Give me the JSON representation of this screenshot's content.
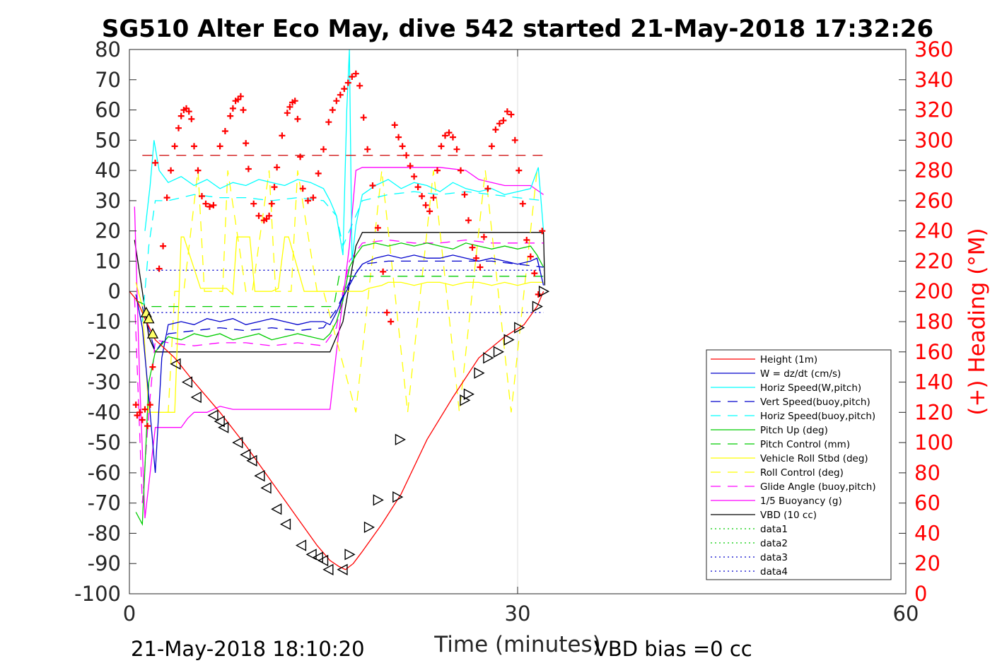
{
  "chart_data": {
    "type": "line",
    "title": "SG510 Alter Eco May, dive 542 started 21-May-2018 17:32:26",
    "xlabel": "Time (minutes)",
    "ylabel_right": "(+) Heading (°M)",
    "footer_left": "21-May-2018 18:10:20",
    "footer_right": "VBD bias =0 cc",
    "xlim": [
      0,
      60
    ],
    "ylim": [
      -100,
      80
    ],
    "ylim_right": [
      0,
      360
    ],
    "x_ticks": [
      0,
      30,
      60
    ],
    "y_ticks": [
      80,
      70,
      60,
      50,
      40,
      30,
      20,
      10,
      0,
      -10,
      -20,
      -30,
      -40,
      -50,
      -60,
      -70,
      -80,
      -90,
      -100
    ],
    "y_ticks_right": [
      360,
      340,
      320,
      300,
      280,
      260,
      240,
      220,
      200,
      180,
      160,
      140,
      120,
      100,
      80,
      60,
      40,
      20,
      0
    ],
    "grid": "x-only",
    "legend_position": "bottom-right",
    "series": [
      {
        "name": "Height (1m)",
        "color": "#ff0000",
        "style": "solid",
        "x": [
          0,
          0.6,
          1.2,
          2.0,
          3.5,
          5,
          7,
          9,
          11,
          13,
          14.5,
          15.5,
          16.2,
          16.7,
          17.3,
          18,
          19.5,
          21,
          23,
          25,
          27,
          29,
          30.5,
          31.5,
          32.0
        ],
        "y": [
          0,
          -3,
          -9,
          -16,
          -22,
          -30,
          -40,
          -51,
          -63,
          -75,
          -84,
          -89,
          -91,
          -92,
          -90,
          -86,
          -77,
          -67,
          -49,
          -35,
          -22,
          -15,
          -11,
          -5,
          0
        ]
      },
      {
        "name": "W = dz/dt (cm/s)",
        "color": "#0000cc",
        "style": "solid",
        "x": [
          0.5,
          1.0,
          1.5,
          2.0,
          2.5,
          3,
          4,
          5,
          6,
          7,
          8,
          9,
          10,
          11,
          12,
          13,
          14,
          15,
          15.5,
          16,
          16.5,
          17,
          17.5,
          18,
          19,
          20,
          21,
          22,
          23,
          24,
          25,
          26,
          27,
          28,
          29,
          30,
          31,
          31.5,
          32
        ],
        "y": [
          -1,
          -12,
          -35,
          -60,
          -22,
          -11,
          -10,
          -11,
          -9,
          -10,
          -9,
          -11,
          -10,
          -9,
          -10,
          -11,
          -10,
          -10,
          -11,
          -7,
          -2,
          2,
          6,
          9,
          11,
          12,
          11,
          12,
          11,
          11,
          12,
          11,
          10,
          11,
          10,
          9,
          10,
          11,
          2
        ]
      },
      {
        "name": "Horiz Speed(W,pitch)",
        "color": "#00ffff",
        "style": "solid",
        "x": [
          1.2,
          1.6,
          1.9,
          2.3,
          3,
          4,
          5,
          6,
          7,
          8,
          9,
          10,
          11,
          12,
          13,
          14,
          15,
          15.5,
          16,
          16.5,
          16.8,
          17.0,
          17.2,
          17.5,
          18,
          19,
          20,
          21,
          22,
          23,
          24,
          25,
          26,
          27,
          28,
          29,
          30,
          31,
          31.6,
          32
        ],
        "y": [
          20,
          35,
          50,
          40,
          36,
          38,
          35,
          37,
          34,
          36,
          35,
          37,
          36,
          35,
          37,
          36,
          34,
          30,
          25,
          12,
          60,
          80,
          10,
          22,
          32,
          35,
          37,
          34,
          36,
          35,
          33,
          36,
          34,
          33,
          34,
          32,
          33,
          34,
          41,
          20
        ]
      },
      {
        "name": "Vert Speed(buoy,pitch)",
        "color": "#0000cc",
        "style": "dashed",
        "x": [
          1.0,
          2.0,
          3,
          5,
          7,
          9,
          11,
          13,
          15,
          16,
          17,
          18,
          20,
          22,
          24,
          26,
          28,
          30,
          32
        ],
        "y": [
          -5,
          -20,
          -14,
          -13,
          -12,
          -13,
          -12,
          -13,
          -12,
          -6,
          3,
          9,
          10,
          10,
          10,
          10,
          10,
          9,
          8
        ]
      },
      {
        "name": "Horiz Speed(buoy,pitch)",
        "color": "#00ffff",
        "style": "dashed",
        "x": [
          1.0,
          1.5,
          2.0,
          3,
          5,
          7,
          9,
          11,
          13,
          15,
          16,
          16.5,
          17,
          18,
          20,
          22,
          24,
          26,
          28,
          30,
          32
        ],
        "y": [
          -10,
          15,
          30,
          30,
          32,
          31,
          31,
          30,
          31,
          30,
          25,
          15,
          20,
          30,
          32,
          33,
          32,
          33,
          32,
          31,
          30
        ]
      },
      {
        "name": "Pitch Up (deg)",
        "color": "#00cc00",
        "style": "solid",
        "x": [
          0.5,
          1.0,
          1.5,
          2.0,
          3,
          4,
          5,
          6,
          7,
          8,
          9,
          10,
          11,
          12,
          13,
          14,
          15,
          15.5,
          16,
          16.5,
          17,
          17.5,
          18,
          19,
          20,
          21,
          22,
          23,
          24,
          25,
          26,
          27,
          28,
          29,
          30,
          31,
          31.5,
          32
        ],
        "y": [
          -73,
          -77,
          -30,
          -20,
          -15,
          -16,
          -14,
          -15,
          -14,
          -16,
          -15,
          -14,
          -16,
          -15,
          -14,
          -15,
          -16,
          -14,
          -10,
          -3,
          8,
          12,
          15,
          16,
          15,
          16,
          15,
          16,
          15,
          14,
          16,
          15,
          14,
          15,
          14,
          15,
          12,
          8
        ]
      },
      {
        "name": "Pitch Control (mm)",
        "color": "#00cc00",
        "style": "dashed",
        "x": [
          0.5,
          1.5,
          2,
          6,
          10,
          14,
          15.8,
          16.2,
          17.3,
          20,
          24,
          28,
          31,
          32
        ],
        "y": [
          -3,
          -5,
          -5,
          -5,
          -5,
          -5,
          -5,
          5,
          5,
          5,
          5,
          5,
          5,
          5
        ]
      },
      {
        "name": "Vehicle Roll Stbd (deg)",
        "color": "#ffff00",
        "style": "solid",
        "x": [
          0.5,
          1.0,
          1.5,
          2.0,
          2.8,
          3.5,
          4.0,
          4.2,
          5.5,
          6.0,
          7.5,
          8.0,
          8.3,
          9.3,
          9.7,
          11.0,
          11.5,
          12.0,
          12.3,
          13.5,
          14.0,
          15.0,
          16.0,
          17.0,
          18.0,
          18.5,
          19.5,
          20.0,
          21.0,
          22.0,
          23.0,
          24.0,
          25.0,
          26.0,
          27.0,
          28.0,
          29.0,
          30.0,
          31.0,
          32.0
        ],
        "y": [
          3,
          -5,
          -40,
          -40,
          -40,
          -40,
          18,
          18,
          1,
          1,
          1,
          -1,
          18,
          18,
          0,
          0,
          1,
          18,
          18,
          0,
          0,
          0,
          0,
          0,
          0,
          1,
          2,
          3,
          3,
          2,
          3,
          3,
          2,
          3,
          3,
          2,
          3,
          2,
          3,
          3
        ]
      },
      {
        "name": "Roll Control (deg)",
        "color": "#ffff00",
        "style": "dashed",
        "x": [
          1.5,
          2.2,
          3.0,
          3.5,
          4.2,
          5.3,
          5.8,
          7.2,
          7.6,
          9.0,
          9.5,
          10.8,
          11.3,
          12.5,
          13.0,
          14.5,
          15.0,
          17.5,
          18.5,
          19.5,
          20.5,
          21.5,
          22.5,
          23.5,
          24.5,
          25.5,
          26.5,
          27.5,
          28.5,
          29.5,
          30.5,
          31.5
        ],
        "y": [
          -40,
          -40,
          -40,
          0,
          0,
          40,
          0,
          0,
          40,
          0,
          0,
          40,
          0,
          0,
          40,
          0,
          0,
          -40,
          0,
          40,
          0,
          -40,
          0,
          40,
          0,
          -40,
          0,
          40,
          0,
          -40,
          0,
          40
        ]
      },
      {
        "name": "Glide Angle (buoy,pitch)",
        "color": "#ff00ff",
        "style": "dashed",
        "x": [
          0.4,
          1.0,
          1.5,
          2.0,
          3,
          5,
          7,
          9,
          11,
          13,
          15,
          16,
          16.5,
          17.0,
          18,
          20,
          22,
          24,
          26,
          28,
          30,
          32
        ],
        "y": [
          -2,
          -70,
          -40,
          -16,
          -17,
          -18,
          -17,
          -17,
          -18,
          -17,
          -18,
          -12,
          0,
          10,
          16,
          17,
          16,
          16,
          17,
          16,
          16,
          16
        ]
      },
      {
        "name": "1/5 Buoyancy (g)",
        "color": "#ff00ff",
        "style": "solid",
        "x": [
          0.4,
          0.8,
          1.2,
          1.6,
          2.0,
          3.0,
          4.0,
          4.5,
          5.0,
          6.0,
          7.0,
          8.0,
          9.0,
          10.0,
          12.0,
          14.0,
          15.5,
          16.0,
          17.0,
          17.5,
          18.0,
          20.0,
          24.0,
          26.0,
          27.0,
          29.0,
          31.0,
          32.0
        ],
        "y": [
          28,
          -30,
          -75,
          -60,
          -45,
          -45,
          -45,
          -42,
          -40,
          -40,
          -38,
          -39,
          -39,
          -39,
          -39,
          -39,
          -39,
          -20,
          15,
          40,
          41,
          41,
          41,
          40,
          37,
          35,
          35,
          32
        ]
      },
      {
        "name": "VBD (10 cc)",
        "color": "#000000",
        "style": "solid",
        "x": [
          0.4,
          1.0,
          1.5,
          2.0,
          15.5,
          16.5,
          17.5,
          18.0,
          32.0,
          32.1
        ],
        "y": [
          17,
          0,
          -15,
          -20,
          -20,
          -10,
          15,
          19.5,
          19.5,
          2
        ]
      },
      {
        "name": "data1",
        "color": "#00cc00",
        "style": "dotted",
        "x": [],
        "y": []
      },
      {
        "name": "data2",
        "color": "#00cc00",
        "style": "dotted",
        "x": [],
        "y": []
      },
      {
        "name": "data3",
        "color": "#0000cc",
        "style": "dotted",
        "x": [
          1.5,
          32
        ],
        "y": [
          7,
          7
        ]
      },
      {
        "name": "data4",
        "color": "#0000cc",
        "style": "dotted",
        "x": [
          1.5,
          32
        ],
        "y": [
          -7,
          -7
        ]
      }
    ],
    "heading_reference": {
      "color": "#cc0000",
      "style": "dashed",
      "x": [
        1.0,
        32.0
      ],
      "heading": [
        290,
        290
      ]
    },
    "heading": {
      "color": "#ff0000",
      "marker": "+",
      "axis": "right",
      "x": [
        0.5,
        0.6,
        0.8,
        1.0,
        1.2,
        1.4,
        1.6,
        1.8,
        2.0,
        2.3,
        2.6,
        2.9,
        3.2,
        3.5,
        3.8,
        4.0,
        4.2,
        4.4,
        4.6,
        4.8,
        5.0,
        5.3,
        5.6,
        5.9,
        6.2,
        6.5,
        7.0,
        7.4,
        7.8,
        8.0,
        8.2,
        8.4,
        8.6,
        8.8,
        9.0,
        9.2,
        9.6,
        10.0,
        10.4,
        10.6,
        10.8,
        11.0,
        11.2,
        11.4,
        11.8,
        12.2,
        12.4,
        12.6,
        12.8,
        13.0,
        13.2,
        13.4,
        13.8,
        14.2,
        14.6,
        15.0,
        15.4,
        15.7,
        16.0,
        16.3,
        16.6,
        16.9,
        17.2,
        17.5,
        17.8,
        18.1,
        18.4,
        18.8,
        19.2,
        19.6,
        19.9,
        20.2,
        20.5,
        20.8,
        21.1,
        21.4,
        21.7,
        22.0,
        22.3,
        22.6,
        22.9,
        23.2,
        23.5,
        23.8,
        24.1,
        24.4,
        24.7,
        25.0,
        25.3,
        25.6,
        25.9,
        26.2,
        26.5,
        26.8,
        27.1,
        27.4,
        27.7,
        28.0,
        28.3,
        28.6,
        28.9,
        29.2,
        29.5,
        29.8,
        30.1,
        30.4,
        30.7,
        31.0,
        31.3,
        31.6,
        31.9
      ],
      "heading": [
        125,
        118,
        120,
        115,
        122,
        111,
        125,
        150,
        285,
        215,
        230,
        262,
        280,
        296,
        308,
        316,
        320,
        321,
        319,
        314,
        296,
        280,
        263,
        258,
        256,
        257,
        296,
        306,
        316,
        321,
        326,
        327,
        329,
        320,
        298,
        281,
        258,
        250,
        247,
        248,
        250,
        258,
        269,
        282,
        303,
        318,
        322,
        325,
        326,
        314,
        289,
        268,
        260,
        262,
        278,
        294,
        312,
        320,
        326,
        330,
        334,
        338,
        342,
        344,
        336,
        315,
        294,
        270,
        242,
        213,
        186,
        180,
        310,
        302,
        296,
        290,
        283,
        276,
        269,
        263,
        257,
        253,
        262,
        280,
        296,
        303,
        305,
        302,
        294,
        280,
        264,
        247,
        229,
        222,
        216,
        236,
        268,
        296,
        307,
        311,
        313,
        319,
        317,
        300,
        280,
        258,
        234,
        223,
        212,
        198,
        240
      ]
    },
    "dive_markers": {
      "marker": "triangle",
      "color": "#000000",
      "x": [
        1.3,
        1.5,
        1.8,
        3.6,
        4.5,
        5.2,
        6.5,
        7.0,
        7.3,
        8.4,
        9.0,
        9.5,
        10.1,
        10.6,
        11.4,
        12.1,
        13.3,
        14.1,
        14.6,
        15.0,
        15.4,
        16.5,
        17.0,
        18.5,
        19.2,
        20.7,
        20.9,
        25.9,
        26.2,
        27.0,
        27.7,
        28.5,
        29.3,
        30.1,
        31.5,
        32.0
      ],
      "y": [
        -7,
        -9,
        -14,
        -24,
        -30,
        -35,
        -41,
        -43,
        -45,
        -50,
        -54,
        -56,
        -61,
        -65,
        -72,
        -77,
        -84,
        -87,
        -88,
        -89,
        -92,
        -92,
        -87,
        -78,
        -69,
        -68,
        -49,
        -36,
        -34,
        -27,
        -22,
        -20,
        -16,
        -12,
        -5,
        0
      ]
    }
  }
}
